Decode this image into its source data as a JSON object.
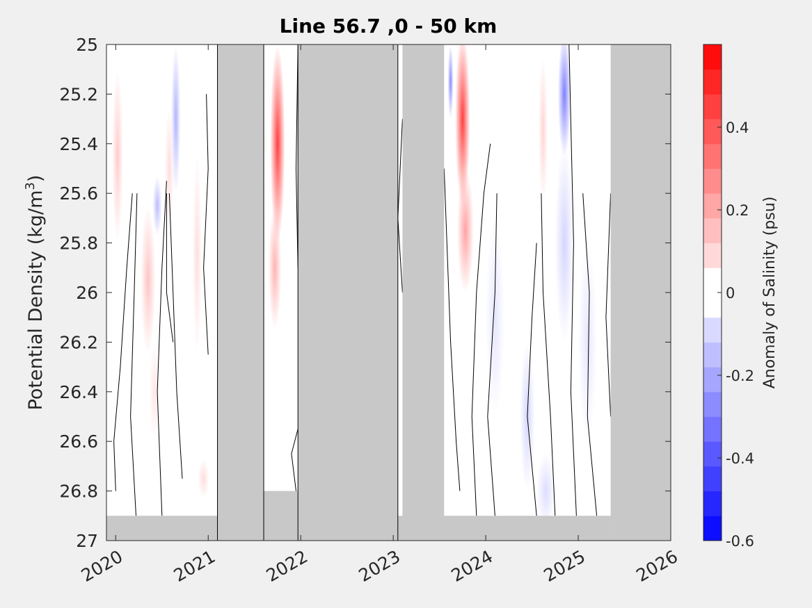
{
  "chart_data": {
    "type": "heatmap",
    "title": "Line 56.7 ,0 - 50 km",
    "xlabel": "",
    "ylabel_main": "Potential Density (kg/m",
    "ylabel_sup": "3",
    "ylabel_close": ")",
    "x_axis": {
      "type": "date",
      "range": [
        2019.9,
        2026.0
      ],
      "ticks": [
        2020,
        2021,
        2022,
        2023,
        2024,
        2025,
        2026
      ],
      "tick_labels": [
        "2020",
        "2021",
        "2022",
        "2023",
        "2024",
        "2025",
        "2026"
      ]
    },
    "y_axis": {
      "range": [
        25.0,
        27.0
      ],
      "reversed": true,
      "ticks": [
        25,
        25.2,
        25.4,
        25.6,
        25.8,
        26,
        26.2,
        26.4,
        26.6,
        26.8,
        27
      ],
      "tick_labels": [
        "25",
        "25.2",
        "25.4",
        "25.6",
        "25.8",
        "26",
        "26.2",
        "26.4",
        "26.6",
        "26.8",
        "27"
      ]
    },
    "colorbar": {
      "label": "Anomaly of Salinity (psu)",
      "range": [
        -0.6,
        0.6
      ],
      "levels": 20,
      "ticks": [
        0.4,
        0.2,
        0,
        -0.2,
        -0.4,
        -0.6
      ],
      "tick_labels": [
        "0.4",
        "0.2",
        "0",
        "-0.2",
        "-0.4",
        "-0.6"
      ],
      "color_min": "#0000ff",
      "color_mid": "#ffffff",
      "color_max": "#ff0000"
    },
    "missing_color": "#c8c8c8",
    "data_gaps": [
      {
        "x": [
          2021.1,
          2021.6
        ],
        "y": [
          25.0,
          27.0
        ]
      },
      {
        "x": [
          2021.97,
          2023.05
        ],
        "y": [
          25.0,
          27.0
        ]
      },
      {
        "x": [
          2023.1,
          2023.55
        ],
        "y": [
          25.0,
          27.0
        ]
      },
      {
        "x": [
          2025.35,
          2026.0
        ],
        "y": [
          25.0,
          27.0
        ]
      },
      {
        "x": [
          2019.9,
          2021.1
        ],
        "y": [
          26.9,
          27.0
        ]
      },
      {
        "x": [
          2023.05,
          2025.35
        ],
        "y": [
          26.9,
          27.0
        ]
      },
      {
        "x": [
          2021.6,
          2021.97
        ],
        "y": [
          26.8,
          27.0
        ]
      }
    ],
    "anomaly_features": [
      {
        "x": 2020.02,
        "y": 25.45,
        "dx": 0.06,
        "dy": 0.35,
        "value": 0.12
      },
      {
        "x": 2020.35,
        "y": 25.95,
        "dx": 0.08,
        "dy": 0.3,
        "value": 0.14
      },
      {
        "x": 2020.42,
        "y": 26.4,
        "dx": 0.06,
        "dy": 0.2,
        "value": 0.06
      },
      {
        "x": 2020.45,
        "y": 25.65,
        "dx": 0.05,
        "dy": 0.12,
        "value": -0.16
      },
      {
        "x": 2020.65,
        "y": 25.3,
        "dx": 0.05,
        "dy": 0.3,
        "value": -0.18
      },
      {
        "x": 2020.58,
        "y": 25.5,
        "dx": 0.05,
        "dy": 0.25,
        "value": 0.08
      },
      {
        "x": 2020.88,
        "y": 25.85,
        "dx": 0.05,
        "dy": 0.4,
        "value": 0.08
      },
      {
        "x": 2020.95,
        "y": 26.75,
        "dx": 0.06,
        "dy": 0.08,
        "value": 0.08
      },
      {
        "x": 2021.75,
        "y": 25.4,
        "dx": 0.08,
        "dy": 0.4,
        "value": 0.45
      },
      {
        "x": 2021.72,
        "y": 25.9,
        "dx": 0.07,
        "dy": 0.25,
        "value": 0.18
      },
      {
        "x": 2023.75,
        "y": 25.3,
        "dx": 0.08,
        "dy": 0.35,
        "value": 0.45
      },
      {
        "x": 2023.78,
        "y": 25.75,
        "dx": 0.09,
        "dy": 0.25,
        "value": 0.22
      },
      {
        "x": 2023.62,
        "y": 25.15,
        "dx": 0.03,
        "dy": 0.15,
        "value": -0.28
      },
      {
        "x": 2024.1,
        "y": 26.1,
        "dx": 0.1,
        "dy": 0.4,
        "value": -0.06
      },
      {
        "x": 2024.45,
        "y": 26.5,
        "dx": 0.08,
        "dy": 0.3,
        "value": -0.1
      },
      {
        "x": 2024.62,
        "y": 25.35,
        "dx": 0.05,
        "dy": 0.3,
        "value": 0.1
      },
      {
        "x": 2024.85,
        "y": 25.2,
        "dx": 0.07,
        "dy": 0.25,
        "value": -0.3
      },
      {
        "x": 2024.85,
        "y": 25.8,
        "dx": 0.1,
        "dy": 0.4,
        "value": -0.1
      },
      {
        "x": 2025.1,
        "y": 26.2,
        "dx": 0.1,
        "dy": 0.4,
        "value": -0.06
      },
      {
        "x": 2024.65,
        "y": 26.8,
        "dx": 0.1,
        "dy": 0.15,
        "value": -0.08
      }
    ],
    "zero_contours": [
      [
        [
          2020.0,
          26.8
        ],
        [
          2019.98,
          26.6
        ],
        [
          2020.05,
          26.3
        ],
        [
          2020.12,
          25.9
        ],
        [
          2020.18,
          25.6
        ]
      ],
      [
        [
          2020.22,
          26.9
        ],
        [
          2020.16,
          26.5
        ],
        [
          2020.2,
          26.0
        ],
        [
          2020.23,
          25.6
        ]
      ],
      [
        [
          2020.5,
          26.9
        ],
        [
          2020.45,
          26.4
        ],
        [
          2020.5,
          25.9
        ],
        [
          2020.55,
          25.55
        ]
      ],
      [
        [
          2020.72,
          26.75
        ],
        [
          2020.66,
          26.4
        ],
        [
          2020.62,
          26.0
        ],
        [
          2020.58,
          25.6
        ]
      ],
      [
        [
          2020.62,
          26.2
        ],
        [
          2020.55,
          26.0
        ],
        [
          2020.55,
          25.6
        ]
      ],
      [
        [
          2021.0,
          26.25
        ],
        [
          2020.95,
          25.9
        ],
        [
          2021.0,
          25.5
        ],
        [
          2020.98,
          25.2
        ]
      ],
      [
        [
          2021.95,
          26.8
        ],
        [
          2021.9,
          26.65
        ],
        [
          2021.97,
          26.55
        ]
      ],
      [
        [
          2021.97,
          25.9
        ],
        [
          2021.95,
          25.5
        ],
        [
          2021.97,
          25.0
        ]
      ],
      [
        [
          2023.1,
          26.0
        ],
        [
          2023.05,
          25.7
        ],
        [
          2023.1,
          25.3
        ]
      ],
      [
        [
          2023.72,
          26.8
        ],
        [
          2023.68,
          26.6
        ],
        [
          2023.62,
          26.2
        ],
        [
          2023.55,
          25.5
        ]
      ],
      [
        [
          2023.9,
          26.9
        ],
        [
          2023.85,
          26.5
        ],
        [
          2023.9,
          26.0
        ],
        [
          2023.98,
          25.6
        ],
        [
          2024.05,
          25.4
        ]
      ],
      [
        [
          2024.1,
          26.9
        ],
        [
          2024.02,
          26.5
        ],
        [
          2024.1,
          26.0
        ],
        [
          2024.12,
          25.6
        ]
      ],
      [
        [
          2024.55,
          26.9
        ],
        [
          2024.45,
          26.5
        ],
        [
          2024.5,
          26.1
        ],
        [
          2024.55,
          25.8
        ]
      ],
      [
        [
          2024.75,
          26.9
        ],
        [
          2024.7,
          26.5
        ],
        [
          2024.62,
          26.0
        ],
        [
          2024.6,
          25.6
        ]
      ],
      [
        [
          2024.98,
          26.9
        ],
        [
          2024.92,
          26.4
        ],
        [
          2024.95,
          25.8
        ],
        [
          2024.9,
          25.0
        ]
      ],
      [
        [
          2025.2,
          26.9
        ],
        [
          2025.1,
          26.5
        ],
        [
          2025.12,
          26.0
        ],
        [
          2025.05,
          25.6
        ]
      ],
      [
        [
          2025.35,
          26.5
        ],
        [
          2025.3,
          26.1
        ],
        [
          2025.35,
          25.6
        ]
      ]
    ]
  }
}
